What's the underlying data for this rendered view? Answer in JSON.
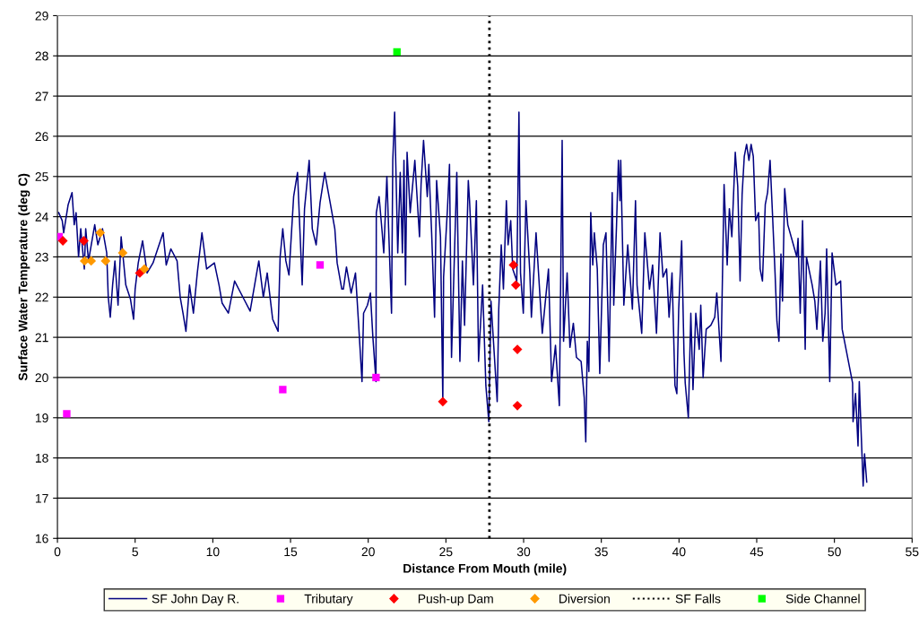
{
  "chart_data": {
    "type": "line",
    "xlabel": "Distance From Mouth (mile)",
    "ylabel": "Surface Water Temperature (deg C)",
    "xlim": [
      0,
      55
    ],
    "xticks": [
      0,
      5,
      10,
      15,
      20,
      25,
      30,
      35,
      40,
      45,
      50,
      55
    ],
    "ylim": [
      16,
      29
    ],
    "yticks": [
      16,
      17,
      18,
      19,
      20,
      21,
      22,
      23,
      24,
      25,
      26,
      27,
      28,
      29
    ],
    "grid": "y",
    "legend": "bottom",
    "series": [
      {
        "name": "SF John Day R.",
        "color": "#000080",
        "marker": "none",
        "line_style": "solid",
        "x": [
          0.08,
          0.31,
          0.4,
          0.69,
          0.94,
          1.08,
          1.2,
          1.36,
          1.5,
          1.73,
          1.82,
          2.0,
          2.4,
          2.6,
          2.9,
          3.17,
          3.27,
          3.4,
          3.55,
          3.7,
          3.9,
          4.1,
          4.4,
          4.7,
          4.9,
          5.0,
          5.2,
          5.48,
          5.77,
          6.15,
          6.8,
          7.0,
          7.3,
          7.7,
          7.9,
          8.08,
          8.27,
          8.5,
          8.75,
          9.0,
          9.3,
          9.6,
          10.1,
          10.4,
          10.6,
          11.0,
          11.4,
          12.0,
          12.4,
          12.8,
          12.96,
          13.25,
          13.5,
          13.85,
          14.2,
          14.33,
          14.5,
          14.7,
          14.9,
          15.2,
          15.45,
          15.75,
          15.9,
          16.2,
          16.4,
          16.65,
          16.9,
          17.2,
          17.55,
          17.85,
          18.0,
          18.3,
          18.4,
          18.6,
          18.9,
          19.18,
          19.37,
          19.6,
          19.7,
          19.95,
          20.14,
          20.3,
          20.5,
          20.52,
          20.7,
          20.9,
          21.0,
          21.2,
          21.4,
          21.5,
          21.58,
          21.7,
          21.9,
          22.06,
          22.2,
          22.3,
          22.4,
          22.5,
          22.7,
          23.0,
          23.3,
          23.4,
          23.56,
          23.8,
          23.9,
          24.08,
          24.27,
          24.4,
          24.65,
          24.8,
          24.85,
          25.1,
          25.23,
          25.36,
          25.5,
          25.7,
          25.9,
          26.06,
          26.2,
          26.44,
          26.52,
          26.77,
          26.96,
          27.1,
          27.36,
          27.57,
          27.76,
          27.9,
          28.3,
          28.4,
          28.56,
          28.7,
          28.89,
          29.0,
          29.17,
          29.3,
          29.56,
          29.7,
          29.8,
          29.98,
          30.15,
          30.4,
          30.5,
          30.8,
          31.2,
          31.6,
          31.8,
          32.05,
          32.3,
          32.48,
          32.57,
          32.8,
          32.98,
          33.2,
          33.4,
          33.7,
          33.9,
          34.0,
          34.1,
          34.2,
          34.32,
          34.45,
          34.55,
          34.74,
          34.9,
          35.13,
          35.3,
          35.5,
          35.7,
          35.8,
          35.98,
          36.1,
          36.2,
          36.25,
          36.45,
          36.7,
          37.0,
          37.2,
          37.3,
          37.6,
          37.8,
          38.1,
          38.3,
          38.55,
          38.78,
          38.97,
          39.2,
          39.36,
          39.55,
          39.74,
          39.86,
          39.98,
          40.17,
          40.32,
          40.4,
          40.6,
          40.76,
          40.9,
          41.08,
          41.3,
          41.4,
          41.55,
          41.75,
          42.05,
          42.3,
          42.43,
          42.7,
          42.9,
          43.1,
          43.24,
          43.4,
          43.62,
          43.78,
          43.93,
          44.06,
          44.2,
          44.35,
          44.5,
          44.64,
          44.78,
          44.93,
          45.12,
          45.22,
          45.37,
          45.55,
          45.7,
          45.86,
          46.0,
          46.18,
          46.3,
          46.43,
          46.56,
          46.66,
          46.8,
          47.0,
          47.58,
          47.66,
          47.8,
          47.95,
          48.12,
          48.2,
          48.57,
          48.74,
          48.87,
          49.1,
          49.25,
          49.4,
          49.5,
          49.7,
          49.85,
          50.1,
          50.4,
          50.5,
          51.17,
          51.2,
          51.36,
          51.52,
          51.6,
          51.85,
          51.94,
          52.08
        ],
        "values": [
          24.1,
          23.9,
          23.6,
          24.3,
          24.6,
          23.8,
          24.1,
          23.0,
          23.7,
          22.7,
          23.7,
          22.9,
          23.8,
          23.3,
          23.7,
          23.1,
          22.0,
          21.5,
          22.3,
          22.9,
          21.8,
          23.5,
          22.3,
          21.95,
          21.45,
          22.2,
          22.85,
          23.4,
          22.6,
          22.85,
          23.6,
          22.8,
          23.2,
          22.9,
          22.0,
          21.6,
          21.15,
          22.3,
          21.6,
          22.6,
          23.6,
          22.7,
          22.85,
          22.3,
          21.85,
          21.6,
          22.4,
          21.95,
          21.65,
          22.55,
          22.9,
          22.0,
          22.6,
          21.45,
          21.15,
          23.0,
          23.7,
          22.9,
          22.55,
          24.5,
          25.1,
          22.3,
          24.2,
          25.4,
          23.7,
          23.3,
          24.35,
          25.1,
          24.35,
          23.7,
          22.85,
          22.2,
          22.2,
          22.75,
          22.1,
          22.6,
          21.4,
          19.9,
          21.6,
          21.8,
          22.1,
          21.0,
          19.9,
          24.1,
          24.5,
          23.6,
          23.1,
          25.0,
          22.7,
          21.6,
          25.4,
          26.6,
          23.1,
          25.1,
          23.1,
          25.4,
          22.3,
          25.6,
          24.1,
          25.4,
          23.5,
          24.8,
          25.9,
          24.5,
          25.3,
          23.6,
          21.5,
          24.9,
          23.5,
          19.4,
          22.5,
          24.2,
          25.3,
          20.5,
          22.4,
          25.1,
          20.4,
          22.9,
          21.3,
          24.9,
          24.4,
          22.3,
          24.4,
          20.4,
          22.3,
          19.8,
          18.9,
          21.9,
          19.4,
          21.7,
          23.3,
          22.2,
          24.4,
          23.3,
          23.9,
          22.7,
          22.4,
          26.6,
          22.6,
          21.6,
          24.4,
          22.6,
          21.5,
          23.6,
          21.1,
          22.7,
          19.9,
          20.8,
          19.3,
          25.9,
          20.9,
          22.6,
          20.75,
          21.35,
          20.5,
          20.4,
          19.5,
          18.4,
          20.9,
          20.15,
          24.1,
          22.8,
          23.6,
          22.7,
          20.1,
          23.3,
          23.6,
          20.4,
          24.6,
          21.8,
          23.8,
          25.4,
          24.4,
          25.4,
          21.8,
          23.3,
          21.7,
          24.4,
          22.3,
          21.1,
          23.6,
          22.2,
          22.8,
          21.1,
          23.6,
          22.5,
          22.7,
          21.5,
          22.6,
          19.8,
          19.6,
          21.7,
          23.4,
          20.6,
          19.86,
          19.0,
          21.6,
          19.7,
          21.6,
          20.7,
          21.8,
          20.0,
          21.2,
          21.3,
          21.5,
          22.1,
          20.4,
          24.8,
          22.8,
          24.2,
          23.5,
          25.6,
          24.75,
          22.4,
          24.55,
          25.5,
          25.8,
          25.4,
          25.8,
          25.5,
          23.9,
          24.1,
          22.7,
          22.4,
          24.3,
          24.6,
          25.4,
          24.2,
          22.6,
          21.4,
          20.9,
          23.07,
          21.9,
          24.7,
          23.8,
          23.0,
          23.46,
          21.6,
          23.9,
          20.7,
          23.0,
          22.3,
          21.9,
          21.2,
          22.9,
          20.9,
          21.6,
          23.2,
          19.9,
          23.1,
          22.3,
          22.4,
          21.2,
          19.86,
          18.9,
          19.6,
          18.3,
          19.9,
          17.3,
          18.1,
          17.4
        ]
      },
      {
        "name": "Tributary",
        "type": "scatter",
        "color": "#ff00ff",
        "marker": "square",
        "x": [
          0.1,
          0.6,
          14.5,
          16.9,
          20.5
        ],
        "values": [
          23.5,
          19.1,
          19.7,
          22.8,
          20.0
        ]
      },
      {
        "name": "Push-up Dam",
        "type": "scatter",
        "color": "#ff0000",
        "marker": "diamond",
        "x": [
          0.35,
          1.7,
          5.3,
          24.8,
          29.35,
          29.5,
          29.6,
          29.6
        ],
        "values": [
          23.4,
          23.4,
          22.6,
          19.4,
          22.8,
          22.3,
          20.7,
          19.3
        ]
      },
      {
        "name": "Diversion",
        "type": "scatter",
        "color": "#ff9900",
        "marker": "diamond",
        "x": [
          1.75,
          2.17,
          2.75,
          3.1,
          4.2,
          5.6
        ],
        "values": [
          22.9,
          22.9,
          23.6,
          22.9,
          23.1,
          22.7
        ]
      },
      {
        "name": "Side Channel",
        "type": "scatter",
        "color": "#00ff00",
        "marker": "square",
        "x": [
          21.85
        ],
        "values": [
          28.1
        ]
      }
    ],
    "ref_lines": [
      {
        "axis": "x",
        "value": 27.8,
        "label": "SF Falls",
        "color": "#000000",
        "line_style": "dotted"
      }
    ]
  }
}
